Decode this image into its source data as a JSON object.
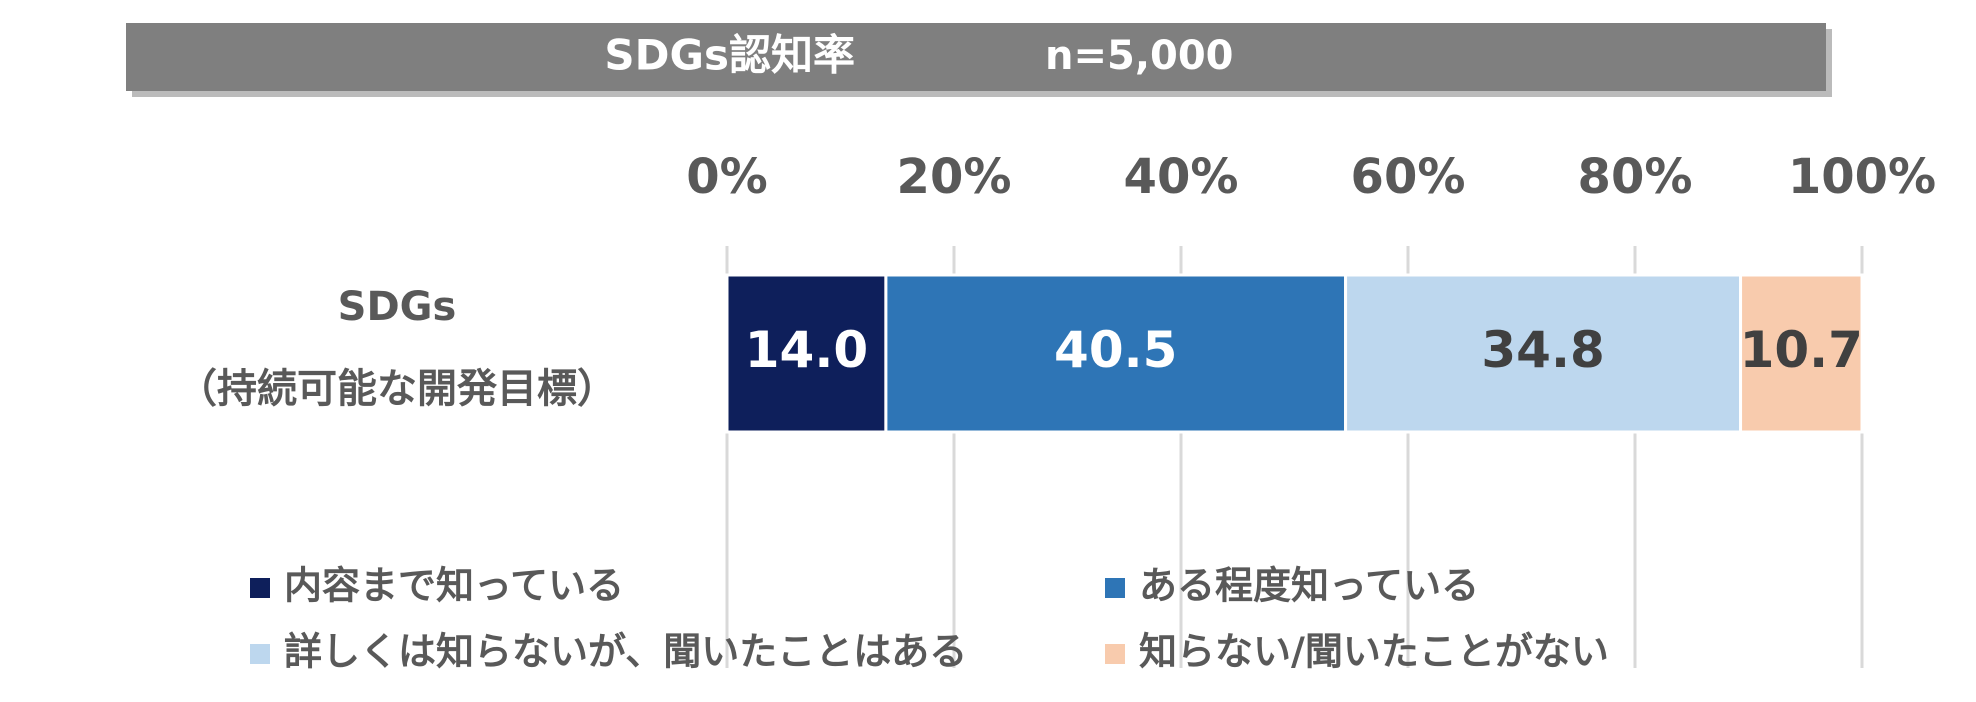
{
  "chart_data": {
    "type": "bar",
    "orientation": "horizontal",
    "stacked": true,
    "title": "SDGs認知率",
    "subtitle": "n=5,000",
    "categories": [
      [
        "SDGs",
        "（持続可能な開発目標）"
      ]
    ],
    "series": [
      {
        "name": "内容まで知っている",
        "color": "#0e1f5b",
        "values": [
          14.0
        ],
        "value_labels": [
          "14.0"
        ]
      },
      {
        "name": "ある程度知っている",
        "color": "#2e75b6",
        "values": [
          40.5
        ]
      },
      {
        "name": "詳しくは知らないが、聞いたことはある",
        "color": "#bdd7ee",
        "values": [
          34.8
        ]
      },
      {
        "name": "知らない/聞いたことがない",
        "color": "#f8cbad",
        "values": [
          10.7
        ]
      }
    ],
    "xlim": [
      0,
      100
    ],
    "xticks": [
      {
        "value": 0,
        "label": "0%"
      },
      {
        "value": 20,
        "label": "20%"
      },
      {
        "value": 40,
        "label": "40%"
      },
      {
        "value": 60,
        "label": "60%"
      },
      {
        "value": 80,
        "label": "80%"
      },
      {
        "value": 100,
        "label": "100%"
      }
    ],
    "grid": true,
    "legend": "bottom"
  }
}
